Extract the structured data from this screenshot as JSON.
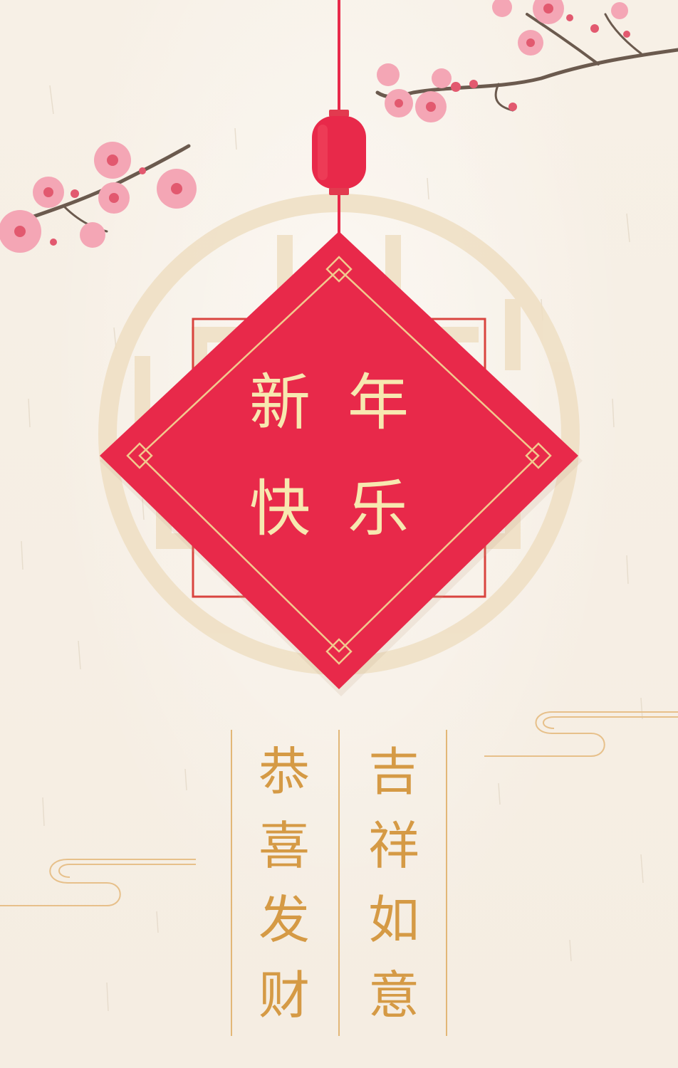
{
  "card": {
    "title": {
      "char1": "新",
      "char2": "年",
      "char3": "快",
      "char4": "乐"
    },
    "left_column": {
      "char1": "恭",
      "char2": "喜",
      "char3": "发",
      "char4": "财"
    },
    "right_column": {
      "char1": "吉",
      "char2": "祥",
      "char3": "如",
      "char4": "意"
    }
  },
  "colors": {
    "background": "#f6efe4",
    "diamond_red": "#e8294a",
    "gold_text": "#f7e8b0",
    "column_gold": "#d59a45",
    "blossom_pink": "#f4a6b5"
  },
  "decorations": [
    "plum-blossom-branch",
    "red-lantern-bead",
    "lattice-window-circle",
    "auspicious-cloud"
  ]
}
